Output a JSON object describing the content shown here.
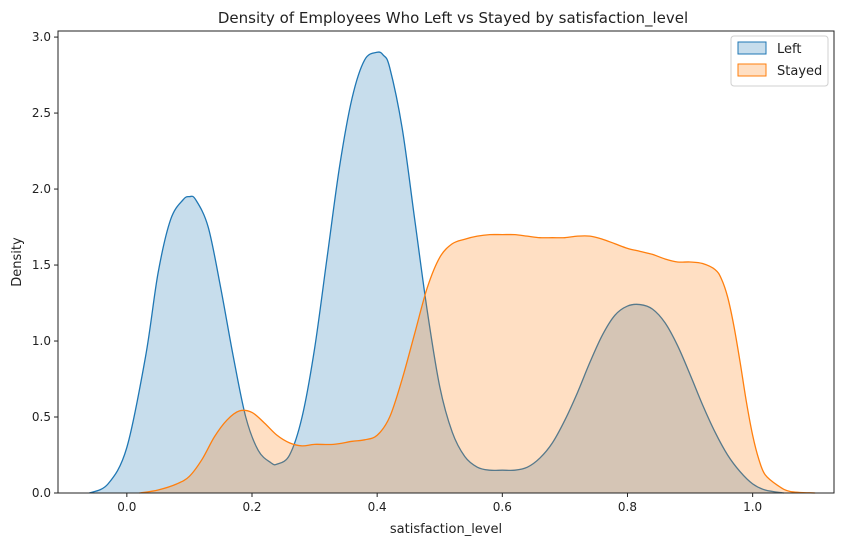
{
  "chart_data": {
    "type": "area",
    "title": "Density of Employees Who Left vs Stayed by satisfaction_level",
    "xlabel": "satisfaction_level",
    "ylabel": "Density",
    "xlim": [
      -0.11,
      1.13
    ],
    "ylim": [
      0,
      3.04
    ],
    "xticks": [
      "0.0",
      "0.2",
      "0.4",
      "0.6",
      "0.8",
      "1.0"
    ],
    "yticks": [
      "0.0",
      "0.5",
      "1.0",
      "1.5",
      "2.0",
      "2.5",
      "3.0"
    ],
    "grid": false,
    "legend_position": "top-right",
    "series": [
      {
        "name": "Left",
        "line_color": "#1f77b4",
        "fill_color": "#1f77b4",
        "fill_opacity": 0.25,
        "x": [
          -0.06,
          -0.03,
          0.0,
          0.03,
          0.05,
          0.07,
          0.09,
          0.1,
          0.11,
          0.13,
          0.15,
          0.17,
          0.19,
          0.21,
          0.23,
          0.24,
          0.26,
          0.28,
          0.3,
          0.32,
          0.34,
          0.36,
          0.38,
          0.4,
          0.41,
          0.42,
          0.44,
          0.46,
          0.48,
          0.5,
          0.52,
          0.54,
          0.56,
          0.58,
          0.6,
          0.62,
          0.64,
          0.66,
          0.68,
          0.7,
          0.72,
          0.74,
          0.76,
          0.78,
          0.8,
          0.82,
          0.84,
          0.86,
          0.88,
          0.9,
          0.92,
          0.94,
          0.96,
          0.98,
          1.0,
          1.02,
          1.05
        ],
        "y": [
          0.0,
          0.06,
          0.3,
          0.9,
          1.45,
          1.8,
          1.93,
          1.95,
          1.93,
          1.75,
          1.35,
          0.9,
          0.5,
          0.28,
          0.2,
          0.19,
          0.25,
          0.5,
          0.95,
          1.55,
          2.15,
          2.6,
          2.85,
          2.9,
          2.88,
          2.8,
          2.4,
          1.8,
          1.2,
          0.7,
          0.4,
          0.24,
          0.17,
          0.15,
          0.15,
          0.15,
          0.17,
          0.23,
          0.33,
          0.48,
          0.66,
          0.86,
          1.04,
          1.17,
          1.23,
          1.24,
          1.21,
          1.12,
          0.97,
          0.78,
          0.58,
          0.4,
          0.25,
          0.14,
          0.06,
          0.02,
          0.0
        ]
      },
      {
        "name": "Stayed",
        "line_color": "#ff7f0e",
        "fill_color": "#ff7f0e",
        "fill_opacity": 0.25,
        "x": [
          0.02,
          0.05,
          0.08,
          0.1,
          0.12,
          0.14,
          0.16,
          0.18,
          0.2,
          0.22,
          0.24,
          0.26,
          0.28,
          0.3,
          0.33,
          0.36,
          0.38,
          0.4,
          0.42,
          0.44,
          0.46,
          0.48,
          0.5,
          0.52,
          0.54,
          0.56,
          0.58,
          0.6,
          0.62,
          0.64,
          0.66,
          0.68,
          0.7,
          0.72,
          0.74,
          0.76,
          0.78,
          0.8,
          0.82,
          0.84,
          0.86,
          0.88,
          0.9,
          0.92,
          0.94,
          0.95,
          0.96,
          0.97,
          0.98,
          0.99,
          1.0,
          1.01,
          1.02,
          1.04,
          1.06,
          1.1
        ],
        "y": [
          0.0,
          0.02,
          0.06,
          0.11,
          0.22,
          0.37,
          0.48,
          0.54,
          0.53,
          0.46,
          0.38,
          0.33,
          0.31,
          0.32,
          0.32,
          0.34,
          0.35,
          0.38,
          0.5,
          0.75,
          1.05,
          1.35,
          1.55,
          1.64,
          1.67,
          1.69,
          1.7,
          1.7,
          1.7,
          1.69,
          1.68,
          1.68,
          1.68,
          1.69,
          1.69,
          1.67,
          1.64,
          1.61,
          1.59,
          1.57,
          1.54,
          1.52,
          1.52,
          1.51,
          1.47,
          1.41,
          1.29,
          1.1,
          0.86,
          0.6,
          0.38,
          0.22,
          0.12,
          0.05,
          0.01,
          0.0
        ]
      }
    ]
  }
}
